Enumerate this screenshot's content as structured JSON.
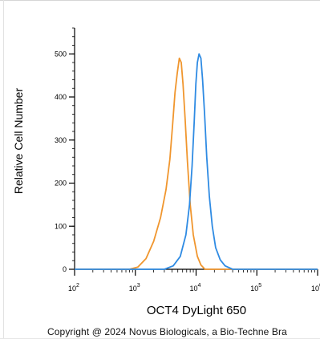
{
  "chart_data": {
    "type": "line",
    "title": "",
    "xlabel": "OCT4 DyLight 650",
    "ylabel": "Relative Cell Number",
    "x_scale": "log",
    "xlim": [
      100,
      1000000
    ],
    "ylim": [
      0,
      560
    ],
    "y_ticks": [
      0,
      100,
      200,
      300,
      400,
      500
    ],
    "x_tick_labels": [
      {
        "base": "10",
        "exp": "2"
      },
      {
        "base": "10",
        "exp": "3"
      },
      {
        "base": "10",
        "exp": "4"
      },
      {
        "base": "10",
        "exp": "5"
      },
      {
        "base": "10",
        "exp": "6"
      }
    ],
    "x_tick_values": [
      100,
      1000,
      10000,
      100000,
      1000000
    ],
    "grid": false,
    "series": [
      {
        "color": "#f0962e",
        "x": [
          100,
          800,
          1100,
          1500,
          2000,
          2600,
          3200,
          3700,
          4100,
          4500,
          4900,
          5300,
          5700,
          6100,
          6600,
          7200,
          8000,
          9000,
          10500,
          12000,
          14000,
          1000000
        ],
        "y": [
          0,
          0,
          5,
          25,
          65,
          120,
          185,
          255,
          335,
          410,
          455,
          490,
          480,
          430,
          350,
          250,
          150,
          80,
          30,
          10,
          0,
          0
        ]
      },
      {
        "color": "#2f8be3",
        "x": [
          100,
          3000,
          4200,
          5500,
          6800,
          7800,
          8600,
          9300,
          9900,
          10500,
          11200,
          12000,
          12800,
          13800,
          15000,
          16500,
          18500,
          21000,
          25000,
          30000,
          40000,
          1000000
        ],
        "y": [
          0,
          0,
          8,
          30,
          80,
          150,
          240,
          340,
          430,
          480,
          500,
          490,
          440,
          360,
          260,
          170,
          100,
          50,
          22,
          8,
          0,
          0
        ]
      }
    ]
  },
  "footer": {
    "copyright": "Copyright @ 2024 Novus Biologicals, a Bio-Techne Bra"
  }
}
